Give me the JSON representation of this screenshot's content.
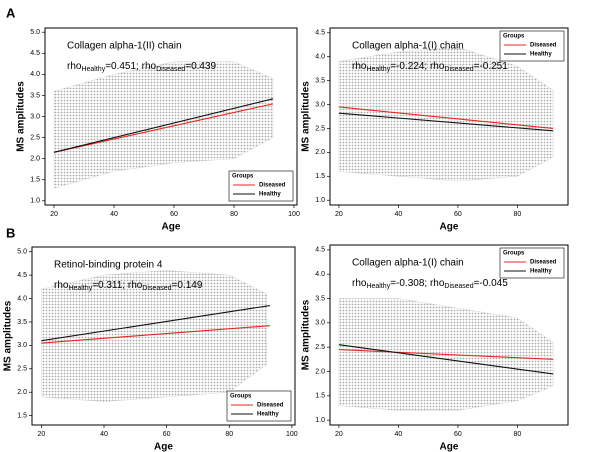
{
  "panel_labels": [
    "A",
    "B"
  ],
  "chart_data": [
    {
      "type": "scatter",
      "title": "Collagen alpha-1(II) chain",
      "annotation_parts": [
        "rho",
        "Healthy",
        "=0.451; rho",
        "Diseased",
        "=0.439"
      ],
      "xlabel": "Age",
      "ylabel": "MS amplitudes",
      "xlim": [
        17,
        101
      ],
      "ylim": [
        0.9,
        5.1
      ],
      "xticks": [
        20,
        40,
        60,
        80,
        100
      ],
      "yticks": [
        {
          "value": 1,
          "label": "1.0"
        },
        {
          "value": 1.5,
          "label": "1.5"
        },
        {
          "value": 2,
          "label": "2.0"
        },
        {
          "value": 2.5,
          "label": "2.5"
        },
        {
          "value": 3,
          "label": "3.0"
        },
        {
          "value": 3.5,
          "label": "3.5"
        },
        {
          "value": 4,
          "label": "4.0"
        },
        {
          "value": 4.5,
          "label": "4.5"
        },
        {
          "value": 5,
          "label": "5.0"
        }
      ],
      "legend": "lower right",
      "legend_title": "Groups",
      "cloud": {
        "color": "#bdbdbd",
        "x": [
          20,
          40,
          60,
          80,
          93
        ],
        "low": [
          1.3,
          1.7,
          1.9,
          2.0,
          2.5
        ],
        "high": [
          3.6,
          4.0,
          4.3,
          4.3,
          3.9
        ]
      },
      "series": [
        {
          "name": "Diseased",
          "color": "#e8271f",
          "x": [
            20,
            93
          ],
          "values": [
            2.15,
            3.3
          ]
        },
        {
          "name": "Healthy",
          "color": "#111111",
          "x": [
            20,
            93
          ],
          "values": [
            2.15,
            3.42
          ]
        }
      ]
    },
    {
      "type": "scatter",
      "title": "Collagen alpha-1(I) chain",
      "annotation_parts": [
        "rho",
        "Healthy",
        "=-0.224; rho",
        "Diseased",
        "=-0.251"
      ],
      "xlabel": "Age",
      "ylabel": "MS amplitudes",
      "xlim": [
        17,
        97
      ],
      "ylim": [
        0.9,
        4.6
      ],
      "xticks": [
        20,
        40,
        60,
        80
      ],
      "yticks": [
        {
          "value": 1,
          "label": "1.0"
        },
        {
          "value": 1.5,
          "label": "1.5"
        },
        {
          "value": 2,
          "label": "2.0"
        },
        {
          "value": 2.5,
          "label": "2.5"
        },
        {
          "value": 3,
          "label": "3.0"
        },
        {
          "value": 3.5,
          "label": "3.5"
        },
        {
          "value": 4,
          "label": "4.0"
        },
        {
          "value": 4.5,
          "label": "4.5"
        }
      ],
      "legend": "upper right",
      "legend_title": "Groups",
      "cloud": {
        "color": "#bdbdbd",
        "x": [
          20,
          40,
          60,
          80,
          92
        ],
        "low": [
          1.6,
          1.5,
          1.4,
          1.5,
          1.9
        ],
        "high": [
          3.9,
          4.1,
          4.2,
          3.8,
          3.3
        ]
      },
      "series": [
        {
          "name": "Diseased",
          "color": "#e8271f",
          "x": [
            20,
            92
          ],
          "values": [
            2.95,
            2.5
          ]
        },
        {
          "name": "Healthy",
          "color": "#111111",
          "x": [
            20,
            92
          ],
          "values": [
            2.82,
            2.45
          ]
        }
      ]
    },
    {
      "type": "scatter",
      "title": "Retinol-binding protein 4",
      "annotation_parts": [
        "rho",
        "Healthy",
        "=0.311; rho",
        "Diseased",
        "=0.149"
      ],
      "xlabel": "Age",
      "ylabel": "MS amplitudes",
      "xlim": [
        17,
        101
      ],
      "ylim": [
        1.3,
        5.1
      ],
      "xticks": [
        20,
        40,
        60,
        80,
        100
      ],
      "yticks": [
        {
          "value": 1.5,
          "label": "1.5"
        },
        {
          "value": 2,
          "label": "2.0"
        },
        {
          "value": 2.5,
          "label": "2.5"
        },
        {
          "value": 3,
          "label": "3.0"
        },
        {
          "value": 3.5,
          "label": "3.5"
        },
        {
          "value": 4,
          "label": "4.0"
        },
        {
          "value": 4.5,
          "label": "4.5"
        },
        {
          "value": 5,
          "label": "5.0"
        }
      ],
      "legend": "lower right",
      "legend_title": "Groups",
      "cloud": {
        "color": "#bdbdbd",
        "x": [
          20,
          40,
          60,
          80,
          92
        ],
        "low": [
          1.9,
          1.8,
          1.9,
          2.0,
          2.6
        ],
        "high": [
          4.2,
          4.5,
          4.6,
          4.5,
          4.1
        ]
      },
      "series": [
        {
          "name": "Diseased",
          "color": "#e8271f",
          "x": [
            20,
            93
          ],
          "values": [
            3.05,
            3.42
          ]
        },
        {
          "name": "Healthy",
          "color": "#111111",
          "x": [
            20,
            93
          ],
          "values": [
            3.1,
            3.85
          ]
        }
      ]
    },
    {
      "type": "scatter",
      "title": "Collagen alpha-1(I) chain",
      "annotation_parts": [
        "rho",
        "Healthy",
        "=-0.308; rho",
        "Diseased",
        "=-0.045"
      ],
      "xlabel": "Age",
      "ylabel": "MS amplitudes",
      "xlim": [
        17,
        97
      ],
      "ylim": [
        0.9,
        4.6
      ],
      "xticks": [
        20,
        40,
        60,
        80
      ],
      "yticks": [
        {
          "value": 1,
          "label": "1.0"
        },
        {
          "value": 1.5,
          "label": "1.5"
        },
        {
          "value": 2,
          "label": "2.0"
        },
        {
          "value": 2.5,
          "label": "2.5"
        },
        {
          "value": 3,
          "label": "3.0"
        },
        {
          "value": 3.5,
          "label": "3.5"
        },
        {
          "value": 4,
          "label": "4.0"
        },
        {
          "value": 4.5,
          "label": "4.5"
        }
      ],
      "legend": "upper right",
      "legend_title": "Groups",
      "cloud": {
        "color": "#bdbdbd",
        "x": [
          20,
          40,
          60,
          80,
          92
        ],
        "low": [
          1.3,
          1.2,
          1.2,
          1.4,
          1.7
        ],
        "high": [
          3.5,
          3.5,
          3.3,
          3.1,
          2.6
        ]
      },
      "series": [
        {
          "name": "Diseased",
          "color": "#e8271f",
          "x": [
            20,
            92
          ],
          "values": [
            2.45,
            2.25
          ]
        },
        {
          "name": "Healthy",
          "color": "#111111",
          "x": [
            20,
            92
          ],
          "values": [
            2.55,
            1.95
          ]
        }
      ]
    }
  ]
}
